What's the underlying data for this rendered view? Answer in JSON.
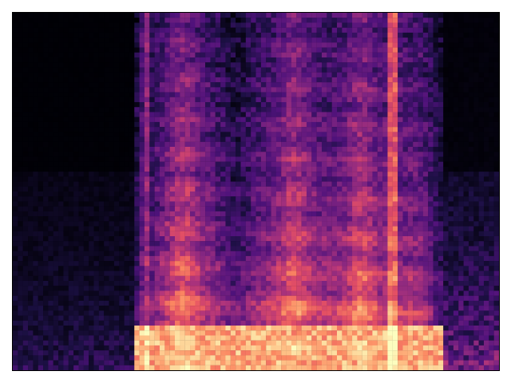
{
  "chart_data": {
    "type": "heatmap",
    "kind": "spectrogram",
    "colormap": "magma",
    "axes_visible": false,
    "ticks_visible": false,
    "grid": false,
    "legend": "none",
    "title": "",
    "xlabel": "",
    "ylabel": "",
    "value_range": [
      0,
      1
    ],
    "n_time_bins": 96,
    "n_freq_bins": 72,
    "dim_time_regions": [
      [
        0.0,
        0.27
      ],
      [
        0.87,
        1.0
      ]
    ],
    "event_line_positions": [
      0.27,
      0.78,
      0.79
    ],
    "bright_column_centers": [
      0.35,
      0.58,
      0.72
    ],
    "low_band_energy": 0.92
  }
}
